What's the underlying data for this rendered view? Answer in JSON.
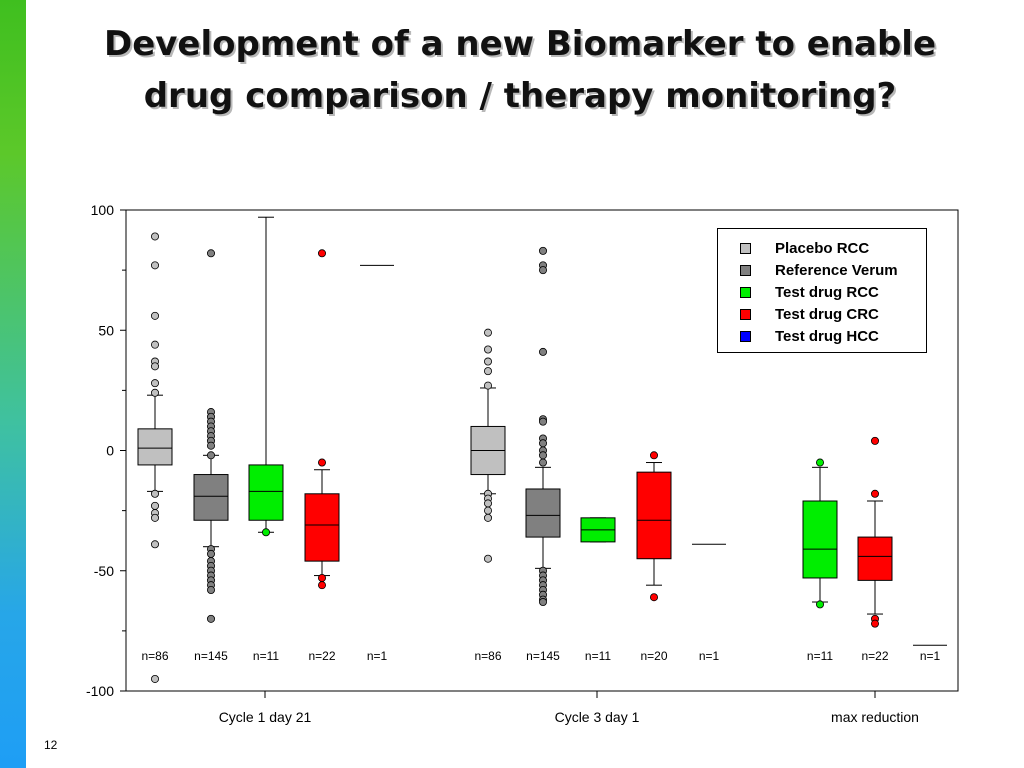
{
  "slide": {
    "title": "Development of a new Biomarker to enable drug comparison / therapy monitoring?",
    "number": "12",
    "colors": {
      "sidebar_top": "#3fbf1f",
      "sidebar_bottom": "#1e9ef5"
    }
  },
  "chart_data": {
    "type": "boxplot",
    "y_ticks": [
      100,
      50,
      0,
      -50,
      -100
    ],
    "ylim": [
      -100,
      100
    ],
    "grid": false,
    "legend_position": "top-right",
    "groups": [
      "Cycle 1 day 21",
      "Cycle 3 day 1",
      "max reduction"
    ],
    "legend": [
      {
        "name": "Placebo RCC",
        "color": "#c0c0c0"
      },
      {
        "name": "Reference Verum",
        "color": "#808080"
      },
      {
        "name": "Test drug RCC",
        "color": "#00ee00"
      },
      {
        "name": "Test drug CRC",
        "color": "#ff0000"
      },
      {
        "name": "Test drug HCC",
        "color": "#0000ff"
      }
    ],
    "boxes": [
      {
        "group": "Cycle 1 day 21",
        "series": "Placebo RCC",
        "n": "n=86",
        "whisker_low": -17,
        "q1": -6,
        "median": 1,
        "q3": 9,
        "whisker_high": 23,
        "outliers": [
          89,
          77,
          56,
          44,
          37,
          35,
          28,
          24,
          -18,
          -23,
          -26,
          -28,
          -39,
          -95
        ]
      },
      {
        "group": "Cycle 1 day 21",
        "series": "Reference Verum",
        "n": "n=145",
        "whisker_low": -40,
        "q1": -29,
        "median": -19,
        "q3": -10,
        "whisker_high": -2,
        "outliers": [
          82,
          16,
          14,
          12,
          10,
          8,
          6,
          4,
          2,
          -2,
          -41,
          -43,
          -46,
          -48,
          -50,
          -52,
          -54,
          -56,
          -58,
          -70
        ]
      },
      {
        "group": "Cycle 1 day 21",
        "series": "Test drug RCC",
        "n": "n=11",
        "whisker_low": -34,
        "q1": -29,
        "median": -17,
        "q3": -6,
        "whisker_high": 97,
        "outliers": [
          -34
        ]
      },
      {
        "group": "Cycle 1 day 21",
        "series": "Test drug CRC",
        "n": "n=22",
        "whisker_low": -52,
        "q1": -46,
        "median": -31,
        "q3": -18,
        "whisker_high": -8,
        "outliers": [
          82,
          -5,
          -53,
          -56
        ]
      },
      {
        "group": "Cycle 1 day 21",
        "series": "Test drug HCC",
        "n": "n=1",
        "single": 77
      },
      {
        "group": "Cycle 3 day 1",
        "series": "Placebo RCC",
        "n": "n=86",
        "whisker_low": -18,
        "q1": -10,
        "median": 0,
        "q3": 10,
        "whisker_high": 26,
        "outliers": [
          49,
          42,
          37,
          33,
          27,
          -18,
          -20,
          -22,
          -25,
          -28,
          -45
        ]
      },
      {
        "group": "Cycle 3 day 1",
        "series": "Reference Verum",
        "n": "n=145",
        "whisker_low": -49,
        "q1": -36,
        "median": -27,
        "q3": -16,
        "whisker_high": -7,
        "outliers": [
          83,
          77,
          75,
          41,
          13,
          12,
          5,
          3,
          0,
          -2,
          -5,
          -50,
          -52,
          -54,
          -56,
          -58,
          -60,
          -62,
          -63
        ]
      },
      {
        "group": "Cycle 3 day 1",
        "series": "Test drug RCC",
        "n": "n=11",
        "whisker_low": -38,
        "q1": -38,
        "median": -33,
        "q3": -28,
        "whisker_high": -28,
        "outliers": []
      },
      {
        "group": "Cycle 3 day 1",
        "series": "Test drug CRC",
        "n": "n=20",
        "whisker_low": -56,
        "q1": -45,
        "median": -29,
        "q3": -9,
        "whisker_high": -5,
        "outliers": [
          -2,
          -61
        ]
      },
      {
        "group": "Cycle 3 day 1",
        "series": "Test drug HCC",
        "n": "n=1",
        "single": -39
      },
      {
        "group": "max reduction",
        "series": "Test drug RCC",
        "n": "n=11",
        "whisker_low": -63,
        "q1": -53,
        "median": -41,
        "q3": -21,
        "whisker_high": -7,
        "outliers": [
          -5,
          -64
        ]
      },
      {
        "group": "max reduction",
        "series": "Test drug CRC",
        "n": "n=22",
        "whisker_low": -68,
        "q1": -54,
        "median": -44,
        "q3": -36,
        "whisker_high": -21,
        "outliers": [
          4,
          -18,
          -70,
          -72
        ]
      },
      {
        "group": "max reduction",
        "series": "Test drug HCC",
        "n": "n=1",
        "single": -81
      }
    ]
  }
}
